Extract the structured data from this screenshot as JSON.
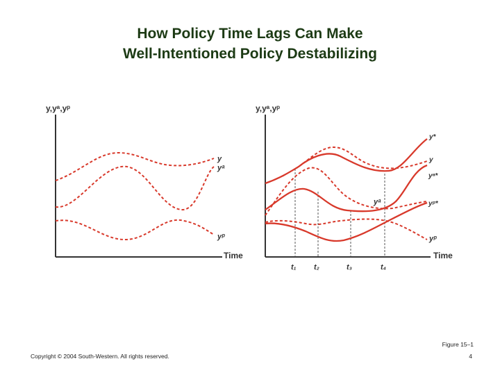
{
  "title": {
    "line1": "How Policy Time Lags Can Make",
    "line2": "Well-Intentioned Policy Destabilizing"
  },
  "left_panel": {
    "y_axis_label": "y,yᵃ,yᵖ",
    "x_axis_label": "Time",
    "curve_labels": {
      "y": "y",
      "ya": "yᵃ",
      "yp": "yᵖ"
    }
  },
  "right_panel": {
    "y_axis_label": "y,yᵃ,yᵖ",
    "x_axis_label": "Time",
    "curve_labels": {
      "y_star": "y*",
      "y": "y",
      "ya_star": "yᵃ*",
      "ya_mid": "yᵃ",
      "yp_star": "yᵖ*",
      "yp": "yᵖ"
    },
    "time_marks": [
      "t₁",
      "t₂",
      "t₃",
      "t₄"
    ]
  },
  "footer": {
    "copyright": "Copyright © 2004 South-Western. All rights reserved.",
    "figure": "Figure 15–1",
    "page": "4"
  },
  "colors": {
    "curve": "#d8392b",
    "axis": "#333333",
    "guide": "#555555",
    "title": "#1c3a14"
  }
}
